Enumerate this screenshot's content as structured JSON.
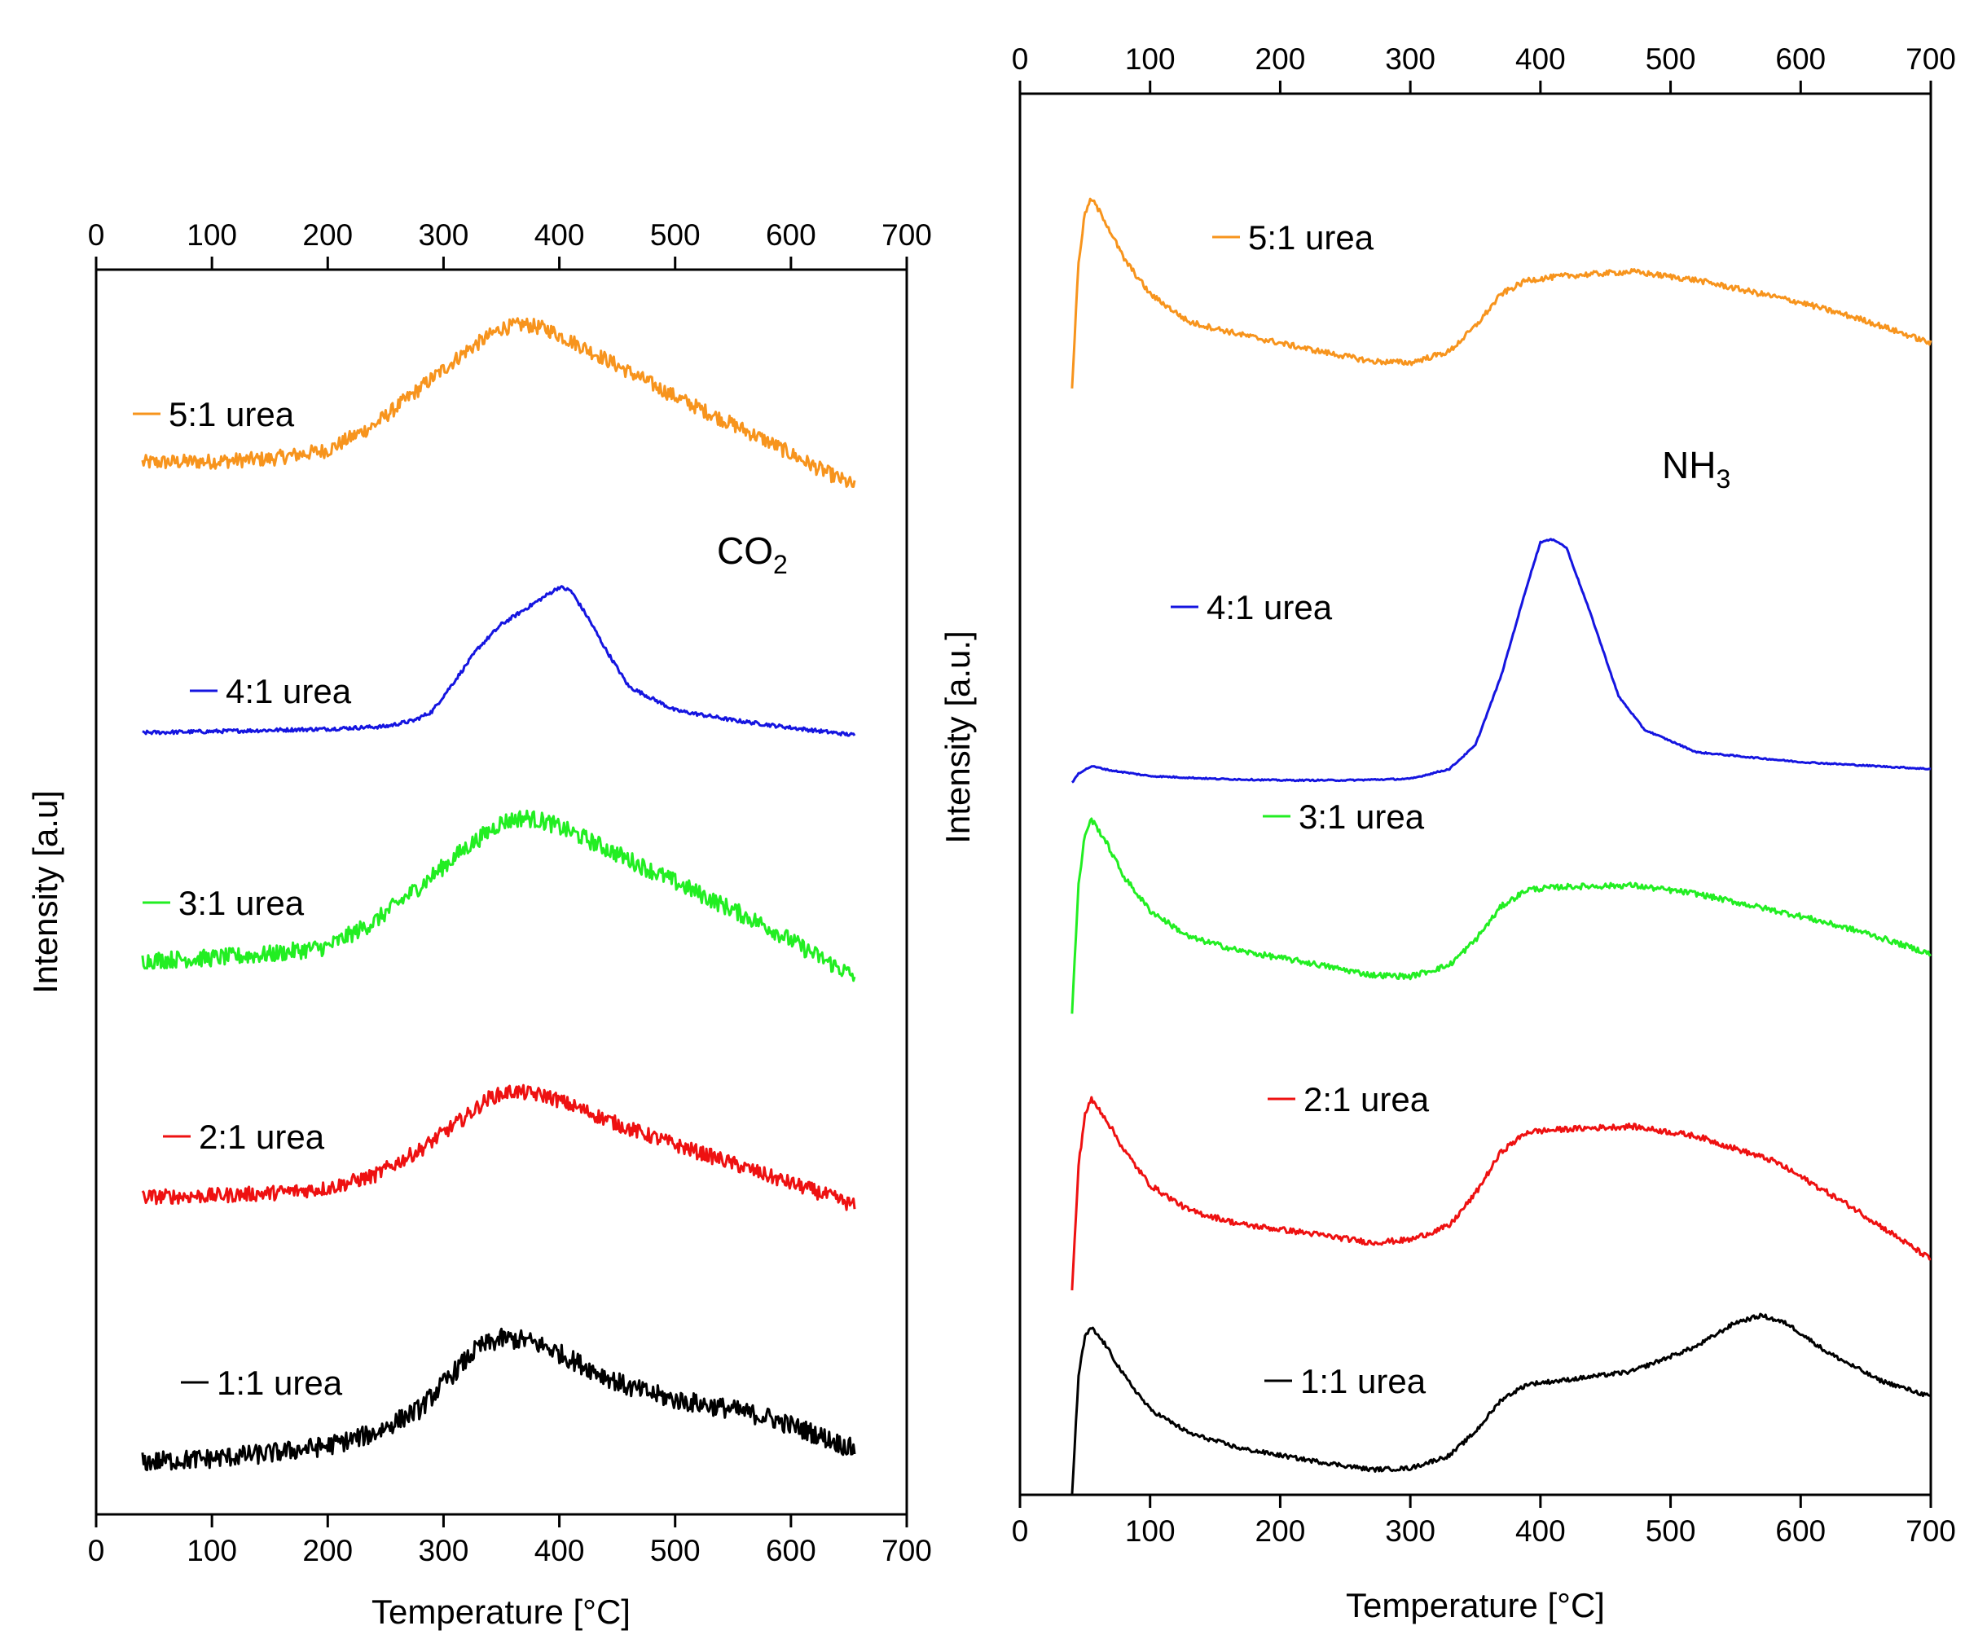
{
  "chart_data": [
    {
      "type": "line",
      "panel": "left",
      "gas": "CO",
      "gas_sub": "2",
      "xlabel": "Temperature [°C]",
      "ylabel": "Intensity [a.u]",
      "xlim": [
        0,
        700
      ],
      "xticks": [
        "0",
        "100",
        "200",
        "300",
        "400",
        "500",
        "600",
        "700"
      ],
      "ylim": [
        0,
        100
      ],
      "grid": false,
      "offset_stacked": true,
      "series": [
        {
          "name": "5:1 urea",
          "color": "#f7941d",
          "x": [
            40,
            100,
            150,
            200,
            240,
            280,
            320,
            350,
            370,
            390,
            420,
            460,
            500,
            540,
            580,
            620,
            655
          ],
          "y": [
            84.5,
            84.6,
            84.8,
            85.5,
            87.5,
            90.5,
            93.5,
            95.3,
            95.6,
            95.2,
            93.8,
            91.8,
            89.8,
            88.0,
            86.2,
            84.2,
            82.6
          ],
          "noise": 0.6
        },
        {
          "name": "4:1 urea",
          "color": "#1515e0",
          "x": [
            40,
            100,
            150,
            200,
            250,
            275,
            290,
            310,
            330,
            350,
            380,
            400,
            410,
            425,
            440,
            460,
            500,
            550,
            600,
            655
          ],
          "y": [
            62.8,
            62.9,
            63.0,
            63.1,
            63.3,
            63.8,
            64.5,
            67.0,
            69.6,
            71.5,
            73.3,
            74.5,
            74.2,
            72.0,
            69.5,
            66.5,
            64.6,
            63.8,
            63.2,
            62.6
          ],
          "noise": 0.15
        },
        {
          "name": "3:1 urea",
          "color": "#22ee22",
          "x": [
            40,
            100,
            150,
            200,
            240,
            280,
            320,
            350,
            370,
            390,
            420,
            460,
            500,
            540,
            580,
            620,
            655
          ],
          "y": [
            44.5,
            44.7,
            45.0,
            45.6,
            47.6,
            50.5,
            53.6,
            55.6,
            56.0,
            55.6,
            54.4,
            52.6,
            50.8,
            49.0,
            47.2,
            45.0,
            43.2
          ],
          "noise": 0.7
        },
        {
          "name": "2:1 urea",
          "color": "#ee1111",
          "x": [
            40,
            100,
            150,
            200,
            240,
            280,
            320,
            340,
            360,
            390,
            420,
            460,
            500,
            540,
            580,
            620,
            655
          ],
          "y": [
            25.5,
            25.6,
            25.8,
            26.2,
            27.2,
            29.3,
            32.0,
            33.5,
            34.0,
            33.6,
            32.5,
            31.0,
            29.7,
            28.5,
            27.2,
            26.0,
            24.8
          ],
          "noise": 0.6
        },
        {
          "name": "1:1 urea",
          "color": "#000000",
          "x": [
            40,
            100,
            150,
            200,
            240,
            280,
            310,
            330,
            350,
            370,
            390,
            420,
            460,
            500,
            540,
            580,
            620,
            655
          ],
          "y": [
            4.2,
            4.5,
            4.9,
            5.5,
            6.5,
            8.5,
            11.5,
            13.4,
            14.1,
            14.0,
            13.4,
            12.0,
            10.2,
            9.2,
            8.6,
            7.8,
            6.5,
            5.2
          ],
          "noise": 0.8
        }
      ]
    },
    {
      "type": "line",
      "panel": "right",
      "gas": "NH",
      "gas_sub": "3",
      "xlabel": "Temperature [°C]",
      "ylabel": "Intensity [a.u.]",
      "xlim": [
        0,
        700
      ],
      "xticks": [
        "0",
        "100",
        "200",
        "300",
        "400",
        "500",
        "600",
        "700"
      ],
      "ylim": [
        0,
        100
      ],
      "grid": false,
      "offset_stacked": true,
      "series": [
        {
          "name": "5:1 urea",
          "color": "#f7941d",
          "x": [
            40,
            45,
            50,
            55,
            65,
            80,
            100,
            130,
            170,
            220,
            270,
            300,
            330,
            350,
            370,
            390,
            420,
            470,
            520,
            600,
            650,
            700
          ],
          "y": [
            79.0,
            88.0,
            91.5,
            92.5,
            91.0,
            88.2,
            85.7,
            83.7,
            82.8,
            81.8,
            80.9,
            80.8,
            81.6,
            83.4,
            85.7,
            86.7,
            87.0,
            87.3,
            86.7,
            85.1,
            83.8,
            82.2
          ],
          "noise": 0.2
        },
        {
          "name": "4:1 urea",
          "color": "#1515e0",
          "x": [
            40,
            45,
            55,
            70,
            100,
            150,
            200,
            250,
            300,
            330,
            350,
            370,
            390,
            400,
            410,
            420,
            440,
            460,
            480,
            520,
            600,
            700
          ],
          "y": [
            50.8,
            51.5,
            52.0,
            51.7,
            51.3,
            51.1,
            51.0,
            51.0,
            51.1,
            51.8,
            53.5,
            58.5,
            65.0,
            68.0,
            68.2,
            67.6,
            62.5,
            57.0,
            54.6,
            53.0,
            52.3,
            51.8
          ],
          "noise": 0.05
        },
        {
          "name": "3:1 urea",
          "color": "#22ee22",
          "x": [
            40,
            45,
            50,
            55,
            65,
            80,
            100,
            130,
            170,
            220,
            270,
            300,
            330,
            350,
            370,
            390,
            420,
            470,
            520,
            600,
            650,
            700
          ],
          "y": [
            34.5,
            43.5,
            47.2,
            48.2,
            46.8,
            44.1,
            41.7,
            39.8,
            38.8,
            38.0,
            37.1,
            37.0,
            37.8,
            39.6,
            42.0,
            43.2,
            43.4,
            43.5,
            42.9,
            41.3,
            40.1,
            38.6
          ],
          "noise": 0.2
        },
        {
          "name": "2:1 urea",
          "color": "#ee1111",
          "x": [
            40,
            45,
            50,
            55,
            65,
            80,
            100,
            130,
            170,
            220,
            270,
            300,
            330,
            350,
            370,
            390,
            420,
            470,
            520,
            580,
            640,
            700
          ],
          "y": [
            14.5,
            23.5,
            27.2,
            28.2,
            27.0,
            24.6,
            22.1,
            20.3,
            19.3,
            18.7,
            18.0,
            18.2,
            19.2,
            21.5,
            24.5,
            25.9,
            26.1,
            26.3,
            25.6,
            23.8,
            20.5,
            16.8
          ],
          "noise": 0.2
        },
        {
          "name": "1:1 urea",
          "color": "#000000",
          "x": [
            40,
            45,
            50,
            55,
            65,
            80,
            100,
            130,
            170,
            220,
            270,
            300,
            330,
            350,
            370,
            390,
            420,
            470,
            520,
            550,
            570,
            590,
            620,
            660,
            700
          ],
          "y": [
            0.0,
            8.5,
            11.3,
            11.9,
            10.8,
            8.5,
            6.1,
            4.4,
            3.3,
            2.5,
            1.8,
            1.9,
            2.8,
            4.5,
            6.8,
            7.9,
            8.2,
            8.8,
            10.6,
            12.3,
            12.8,
            12.2,
            10.2,
            8.2,
            7.0
          ],
          "noise": 0.15
        }
      ]
    }
  ]
}
